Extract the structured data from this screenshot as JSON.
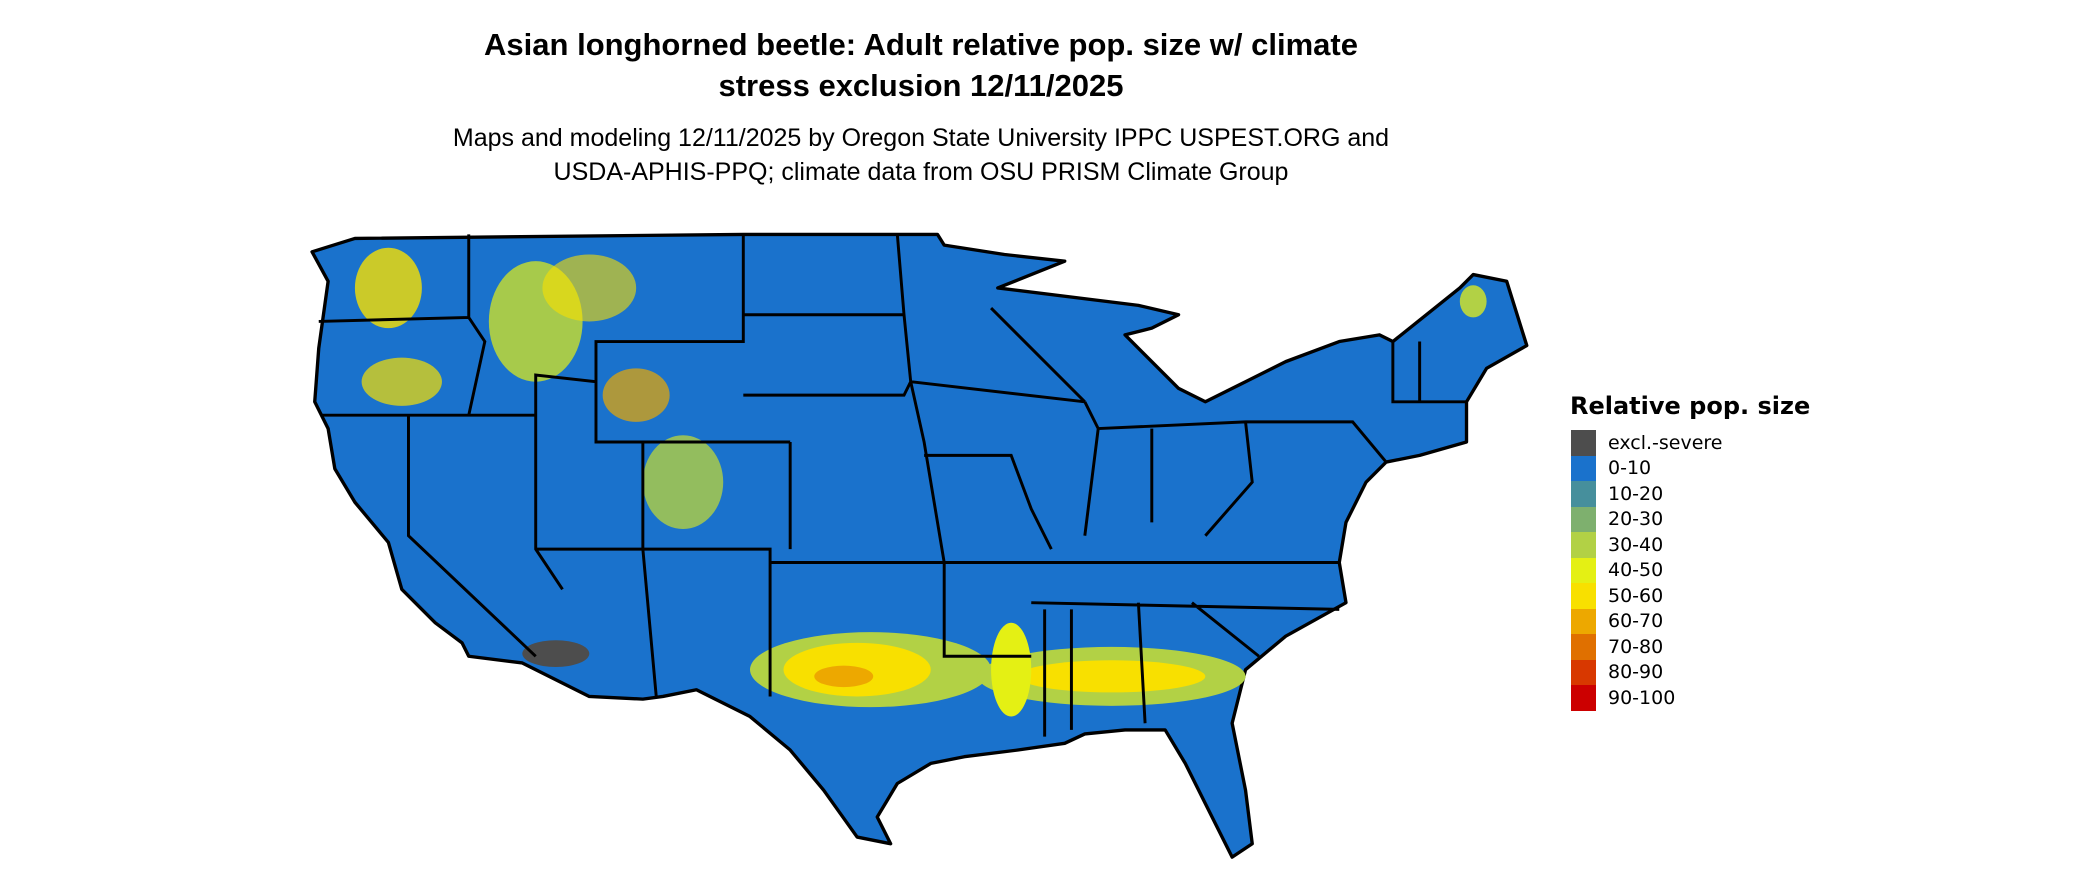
{
  "title": {
    "line1": "Asian longhorned beetle: Adult relative pop. size w/ climate",
    "line2": "stress exclusion 12/11/2025"
  },
  "subtitle": {
    "line1": "Maps and modeling 12/11/2025 by Oregon State University IPPC USPEST.ORG and",
    "line2": "USDA-APHIS-PPQ; climate data from OSU PRISM Climate Group"
  },
  "legend": {
    "title": "Relative pop. size",
    "items": [
      {
        "label": "excl.-severe",
        "color": "#4d4d4d"
      },
      {
        "label": "0-10",
        "color": "#1a72cc"
      },
      {
        "label": "10-20",
        "color": "#468f9c"
      },
      {
        "label": "20-30",
        "color": "#7eb06e"
      },
      {
        "label": "30-40",
        "color": "#b2d145"
      },
      {
        "label": "40-50",
        "color": "#e4f014"
      },
      {
        "label": "50-60",
        "color": "#f8e000"
      },
      {
        "label": "60-70",
        "color": "#eda800"
      },
      {
        "label": "70-80",
        "color": "#e07000"
      },
      {
        "label": "80-90",
        "color": "#d83800"
      },
      {
        "label": "90-100",
        "color": "#cc0000"
      }
    ]
  }
}
